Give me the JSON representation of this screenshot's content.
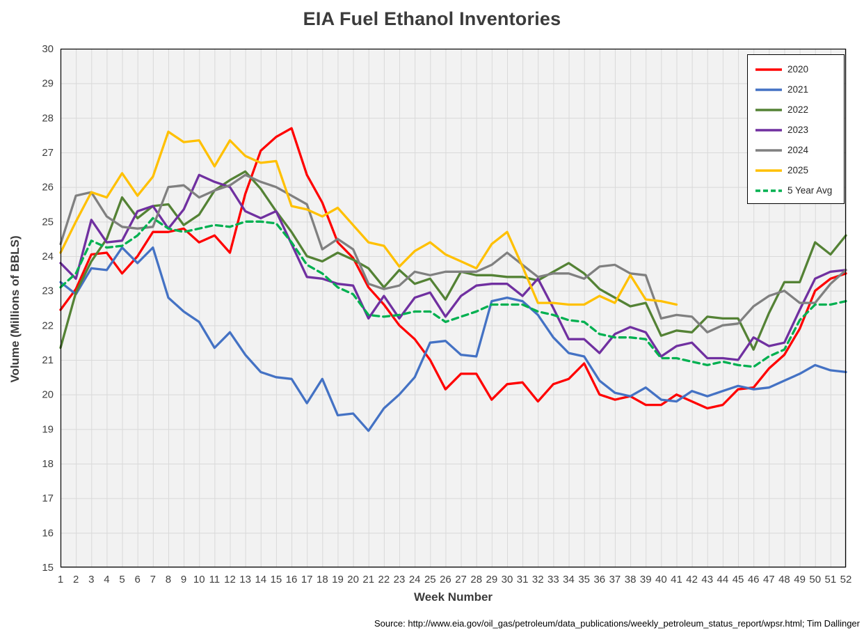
{
  "chart_data": {
    "type": "line",
    "title": "EIA Fuel Ethanol Inventories",
    "xlabel": "Week Number",
    "ylabel": "Volume (Millions of BBLS)",
    "x_min": 1,
    "x_max": 52,
    "y_min": 15,
    "y_max": 30,
    "y_step": 1,
    "grid": true,
    "legend_position": "top-right",
    "plot_bg": "#f2f2f2",
    "grid_color": "#d9d9d9",
    "axis_color": "#000000",
    "tick_label_color": "#3f3f3f",
    "series": [
      {
        "name": "2020",
        "color": "#FF0000",
        "dashed": false,
        "values": [
          22.45,
          23.05,
          24.05,
          24.1,
          23.5,
          24.0,
          24.7,
          24.7,
          24.8,
          24.4,
          24.6,
          24.1,
          25.8,
          27.05,
          27.45,
          27.7,
          26.35,
          25.55,
          24.4,
          23.95,
          23.1,
          22.6,
          22.0,
          21.6,
          21.0,
          20.15,
          20.6,
          20.6,
          19.85,
          20.3,
          20.35,
          19.8,
          20.3,
          20.45,
          20.9,
          20.0,
          19.85,
          19.95,
          19.7,
          19.7,
          20.0,
          19.8,
          19.6,
          19.7,
          20.15,
          20.2,
          20.75,
          21.15,
          21.9,
          23.0,
          23.35,
          23.5
        ]
      },
      {
        "name": "2021",
        "color": "#4472C4",
        "dashed": false,
        "values": [
          23.25,
          22.9,
          23.65,
          23.6,
          24.25,
          23.8,
          24.25,
          22.8,
          22.4,
          22.1,
          21.35,
          21.8,
          21.15,
          20.65,
          20.5,
          20.45,
          19.75,
          20.45,
          19.4,
          19.45,
          18.95,
          19.6,
          20.0,
          20.5,
          21.5,
          21.55,
          21.15,
          21.1,
          22.7,
          22.8,
          22.7,
          22.3,
          21.65,
          21.2,
          21.1,
          20.4,
          20.05,
          19.95,
          20.2,
          19.85,
          19.8,
          20.1,
          19.95,
          20.1,
          20.25,
          20.15,
          20.2,
          20.4,
          20.6,
          20.85,
          20.7,
          20.65
        ]
      },
      {
        "name": "2022",
        "color": "#548235",
        "dashed": false,
        "values": [
          21.35,
          22.95,
          23.85,
          24.5,
          25.7,
          25.1,
          25.45,
          25.5,
          24.9,
          25.2,
          25.9,
          26.2,
          26.45,
          25.95,
          25.3,
          24.7,
          24.0,
          23.85,
          24.1,
          23.9,
          23.65,
          23.1,
          23.6,
          23.2,
          23.35,
          22.75,
          23.55,
          23.45,
          23.45,
          23.4,
          23.4,
          23.3,
          23.55,
          23.8,
          23.5,
          23.05,
          22.8,
          22.55,
          22.65,
          21.7,
          21.85,
          21.8,
          22.25,
          22.2,
          22.2,
          21.3,
          22.35,
          23.25,
          23.25,
          24.4,
          24.05,
          24.6
        ]
      },
      {
        "name": "2023",
        "color": "#7030A0",
        "dashed": false,
        "values": [
          23.8,
          23.35,
          25.05,
          24.4,
          24.45,
          25.3,
          25.45,
          24.8,
          25.35,
          26.35,
          26.15,
          26.0,
          25.3,
          25.1,
          25.3,
          24.35,
          23.4,
          23.35,
          23.2,
          23.15,
          22.2,
          22.85,
          22.2,
          22.8,
          22.95,
          22.25,
          22.85,
          23.15,
          23.2,
          23.2,
          22.85,
          23.35,
          22.5,
          21.6,
          21.6,
          21.2,
          21.75,
          21.95,
          21.8,
          21.1,
          21.4,
          21.5,
          21.05,
          21.05,
          21.0,
          21.65,
          21.4,
          21.5,
          22.45,
          23.35,
          23.55,
          23.6
        ]
      },
      {
        "name": "2024",
        "color": "#808080",
        "dashed": false,
        "values": [
          24.35,
          25.75,
          25.85,
          25.15,
          24.85,
          24.8,
          24.85,
          26.0,
          26.05,
          25.7,
          25.9,
          26.05,
          26.35,
          26.15,
          26.0,
          25.75,
          25.5,
          24.2,
          24.5,
          24.2,
          23.2,
          23.05,
          23.15,
          23.55,
          23.45,
          23.55,
          23.55,
          23.55,
          23.75,
          24.1,
          23.75,
          23.4,
          23.5,
          23.5,
          23.35,
          23.7,
          23.75,
          23.5,
          23.45,
          22.2,
          22.3,
          22.25,
          21.8,
          22.0,
          22.05,
          22.55,
          22.85,
          23.0,
          22.65,
          22.65,
          23.2,
          23.6
        ]
      },
      {
        "name": "2025",
        "color": "#FFC000",
        "dashed": false,
        "values": [
          24.1,
          25.0,
          25.85,
          25.7,
          26.4,
          25.75,
          26.3,
          27.6,
          27.3,
          27.35,
          26.6,
          27.35,
          26.9,
          26.7,
          26.75,
          25.45,
          25.35,
          25.15,
          25.4,
          24.9,
          24.4,
          24.3,
          23.7,
          24.15,
          24.4,
          24.05,
          23.85,
          23.65,
          24.35,
          24.7,
          23.7,
          22.65,
          22.65,
          22.6,
          22.6,
          22.85,
          22.65,
          23.45,
          22.75,
          22.7,
          22.6
        ]
      },
      {
        "name": "5 Year Avg",
        "color": "#00B050",
        "dashed": true,
        "values": [
          23.1,
          23.5,
          24.45,
          24.25,
          24.3,
          24.6,
          25.1,
          24.8,
          24.7,
          24.8,
          24.9,
          24.85,
          25.0,
          25.0,
          24.95,
          24.4,
          23.75,
          23.5,
          23.1,
          22.9,
          22.3,
          22.25,
          22.3,
          22.4,
          22.4,
          22.1,
          22.25,
          22.4,
          22.6,
          22.6,
          22.6,
          22.4,
          22.3,
          22.15,
          22.1,
          21.75,
          21.65,
          21.65,
          21.6,
          21.05,
          21.05,
          20.95,
          20.85,
          20.95,
          20.85,
          20.8,
          21.1,
          21.3,
          22.15,
          22.6,
          22.6,
          22.7
        ]
      }
    ],
    "source": "Source: http://www.eia.gov/oil_gas/petroleum/data_publications/weekly_petroleum_status_report/wpsr.html; Tim Dallinger"
  }
}
